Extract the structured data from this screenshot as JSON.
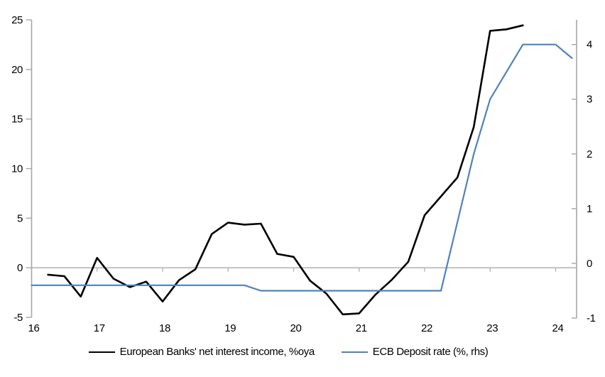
{
  "chart_data": {
    "type": "line",
    "title": "",
    "x_axis": {
      "ticks": [
        16,
        17,
        18,
        19,
        20,
        21,
        22,
        23,
        24
      ],
      "tick_labels": [
        "16",
        "17",
        "18",
        "19",
        "20",
        "21",
        "22",
        "23",
        "24"
      ],
      "range": [
        16,
        24.32
      ]
    },
    "left_axis": {
      "ticks": [
        -5,
        0,
        5,
        10,
        15,
        20,
        25
      ],
      "tick_labels": [
        "-5",
        "0",
        "5",
        "10",
        "15",
        "20",
        "25"
      ],
      "range": [
        -5,
        25
      ]
    },
    "right_axis": {
      "ticks": [
        -1,
        0,
        1,
        2,
        3,
        4
      ],
      "tick_labels": [
        "-1",
        "0",
        "1",
        "2",
        "3",
        "4"
      ],
      "range": [
        -1,
        4.45
      ]
    },
    "grid": "zero-line-only",
    "legend_position": "bottom",
    "series": [
      {
        "name": "European Banks' net interest income, %oya",
        "axis": "left",
        "color": "#000000",
        "stroke_width": 2.6,
        "x": [
          16.25,
          16.5,
          16.75,
          17.0,
          17.25,
          17.5,
          17.75,
          18.0,
          18.25,
          18.5,
          18.75,
          19.0,
          19.25,
          19.5,
          19.75,
          20.0,
          20.25,
          20.5,
          20.75,
          21.0,
          21.25,
          21.5,
          21.75,
          22.0,
          22.25,
          22.5,
          22.75,
          23.0,
          23.25,
          23.5
        ],
        "values": [
          -0.7,
          -0.85,
          -2.9,
          1.0,
          -1.1,
          -1.95,
          -1.4,
          -3.4,
          -1.25,
          -0.15,
          3.4,
          4.55,
          4.35,
          4.45,
          1.4,
          1.1,
          -1.3,
          -2.6,
          -4.7,
          -4.6,
          -2.7,
          -1.2,
          0.6,
          5.3,
          7.2,
          9.1,
          14.2,
          23.9,
          24.05,
          24.45
        ]
      },
      {
        "name": "ECB Deposit rate (%, rhs)",
        "axis": "right",
        "color": "#4f81bd",
        "stroke_width": 2.2,
        "x": [
          16.0,
          16.25,
          16.5,
          16.75,
          17.0,
          17.25,
          17.5,
          17.75,
          18.0,
          18.25,
          18.5,
          18.75,
          19.0,
          19.25,
          19.5,
          19.75,
          20.0,
          20.25,
          20.5,
          20.75,
          21.0,
          21.25,
          21.5,
          21.75,
          22.0,
          22.25,
          22.5,
          22.75,
          23.0,
          23.25,
          23.5,
          23.75,
          24.0,
          24.25
        ],
        "values": [
          -0.4,
          -0.4,
          -0.4,
          -0.4,
          -0.4,
          -0.4,
          -0.4,
          -0.4,
          -0.4,
          -0.4,
          -0.4,
          -0.4,
          -0.4,
          -0.4,
          -0.5,
          -0.5,
          -0.5,
          -0.5,
          -0.5,
          -0.5,
          -0.5,
          -0.5,
          -0.5,
          -0.5,
          -0.5,
          -0.5,
          0.75,
          2.0,
          3.0,
          3.5,
          4.0,
          4.0,
          4.0,
          3.75
        ]
      }
    ],
    "style": {
      "axis_color": "#a6a6a6",
      "gridline_color": "#b0b0b0",
      "text_color": "#000000",
      "background": "#ffffff"
    }
  }
}
